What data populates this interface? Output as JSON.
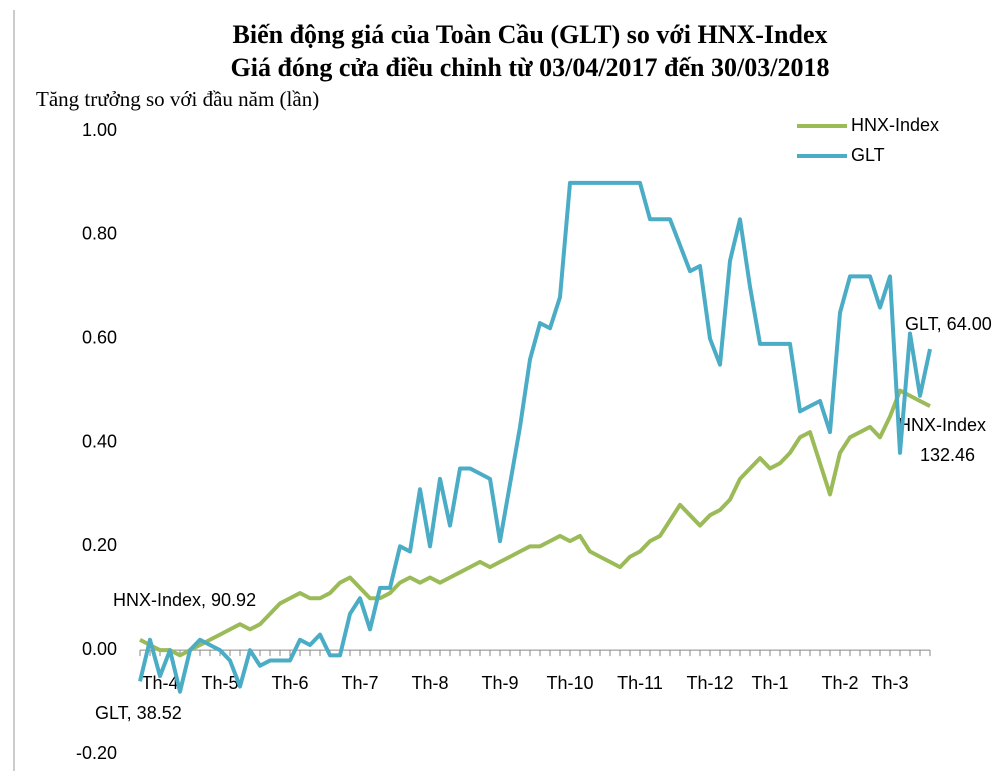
{
  "chart_data": {
    "type": "line",
    "title": "Biến động  giá của Toàn Cầu (GLT) so với  HNX-Index",
    "subtitle": "Giá đóng cửa điều chỉnh từ 03/04/2017 đến 30/03/2018",
    "y_label": "Tăng trưởng so với đầu năm (lần)",
    "categories": [
      null,
      null,
      "Th-4",
      null,
      null,
      null,
      null,
      null,
      "Th-5",
      null,
      null,
      null,
      null,
      null,
      null,
      "Th-6",
      null,
      null,
      null,
      null,
      null,
      null,
      "Th-7",
      null,
      null,
      null,
      null,
      null,
      null,
      "Th-8",
      null,
      null,
      null,
      null,
      null,
      null,
      "Th-9",
      null,
      null,
      null,
      null,
      null,
      null,
      "Th-10",
      null,
      null,
      null,
      null,
      null,
      null,
      "Th-11",
      null,
      null,
      null,
      null,
      null,
      null,
      "Th-12",
      null,
      null,
      null,
      null,
      null,
      "Th-1",
      null,
      null,
      null,
      null,
      null,
      null,
      "Th-2",
      null,
      null,
      null,
      null,
      "Th-3",
      null,
      null,
      null,
      null
    ],
    "series": [
      {
        "name": "HNX-Index",
        "color": "#9bbb59",
        "values": [
          0.02,
          0.01,
          0.0,
          0.0,
          -0.01,
          0.0,
          0.01,
          0.02,
          0.03,
          0.04,
          0.05,
          0.04,
          0.05,
          0.07,
          0.09,
          0.1,
          0.11,
          0.1,
          0.1,
          0.11,
          0.13,
          0.14,
          0.12,
          0.1,
          0.1,
          0.11,
          0.13,
          0.14,
          0.13,
          0.14,
          0.13,
          0.14,
          0.15,
          0.16,
          0.17,
          0.16,
          0.17,
          0.18,
          0.19,
          0.2,
          0.2,
          0.21,
          0.22,
          0.21,
          0.22,
          0.19,
          0.18,
          0.17,
          0.16,
          0.18,
          0.19,
          0.21,
          0.22,
          0.25,
          0.28,
          0.26,
          0.24,
          0.26,
          0.27,
          0.29,
          0.33,
          0.35,
          0.37,
          0.35,
          0.36,
          0.38,
          0.41,
          0.42,
          0.36,
          0.3,
          0.38,
          0.41,
          0.42,
          0.43,
          0.41,
          0.45,
          0.5,
          0.49,
          0.48,
          0.47
        ]
      },
      {
        "name": "GLT",
        "color": "#4bacc6",
        "values": [
          -0.06,
          0.02,
          -0.05,
          0.0,
          -0.08,
          0.0,
          0.02,
          0.01,
          0.0,
          -0.02,
          -0.07,
          0.0,
          -0.03,
          -0.02,
          -0.02,
          -0.02,
          0.02,
          0.01,
          0.03,
          -0.01,
          -0.01,
          0.07,
          0.1,
          0.04,
          0.12,
          0.12,
          0.2,
          0.19,
          0.31,
          0.2,
          0.33,
          0.24,
          0.35,
          0.35,
          0.34,
          0.33,
          0.21,
          0.32,
          0.43,
          0.56,
          0.63,
          0.62,
          0.68,
          0.9,
          0.9,
          0.9,
          0.9,
          0.9,
          0.9,
          0.9,
          0.9,
          0.83,
          0.83,
          0.83,
          0.78,
          0.73,
          0.74,
          0.6,
          0.55,
          0.75,
          0.83,
          0.7,
          0.59,
          0.59,
          0.59,
          0.59,
          0.46,
          0.47,
          0.48,
          0.42,
          0.65,
          0.72,
          0.72,
          0.72,
          0.66,
          0.72,
          0.38,
          0.61,
          0.49,
          0.58
        ]
      }
    ],
    "ylim": [
      -0.2,
      1.0
    ],
    "yticks": [
      {
        "value": -0.2,
        "label": "-0.20"
      },
      {
        "value": 0,
        "label": "0.00"
      },
      {
        "value": 0.2,
        "label": "0.20"
      },
      {
        "value": 0.4,
        "label": "0.40"
      },
      {
        "value": 0.6,
        "label": "0.60"
      },
      {
        "value": 0.8,
        "label": "0.80"
      },
      {
        "value": 1.0,
        "label": "1.00"
      }
    ],
    "annotations": [
      "HNX-Index,  90.92",
      "GLT, 38.52",
      "GLT, 64.00",
      "HNX-Index",
      "132.46"
    ],
    "legend": "top-right"
  }
}
